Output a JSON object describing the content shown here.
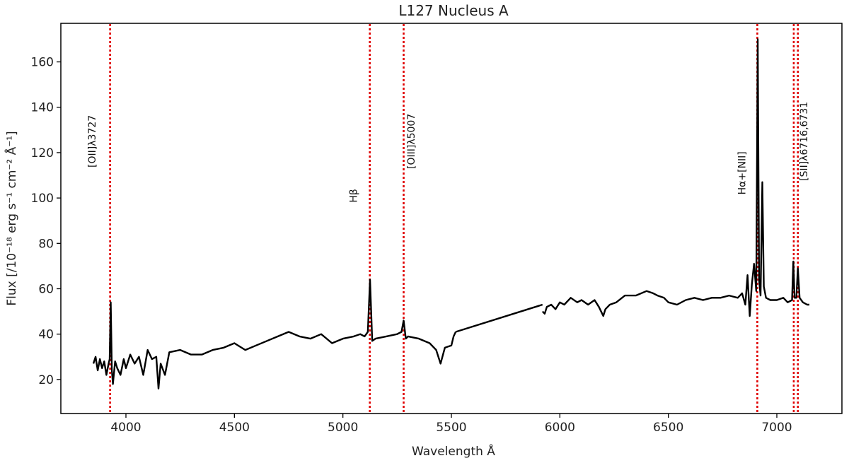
{
  "chart_data": {
    "type": "line",
    "title": "L127 Nucleus A",
    "xlabel": "Wavelength Å",
    "ylabel": "Flux  [/10⁻¹⁸ erg s⁻¹ cm⁻² Å⁻¹]",
    "xlim": [
      3700,
      7300
    ],
    "ylim": [
      5,
      177
    ],
    "x_ticks": [
      4000,
      4500,
      5000,
      5500,
      6000,
      6500,
      7000
    ],
    "y_ticks": [
      20,
      40,
      60,
      80,
      100,
      120,
      140,
      160
    ],
    "grid": false,
    "line_color": "#000000",
    "marker_color": "#e00000",
    "segments": [
      {
        "x": [
          3850,
          3860,
          3870,
          3880,
          3890,
          3900,
          3910,
          3920,
          3925,
          3930,
          3935,
          3940,
          3950,
          3960,
          3975,
          3990,
          4000,
          4020,
          4040,
          4060,
          4080,
          4100,
          4120,
          4140,
          4150,
          4160,
          4180,
          4200,
          4250,
          4300,
          4350,
          4400,
          4450,
          4500,
          4550,
          4600,
          4650,
          4700,
          4750,
          4800,
          4850,
          4900,
          4950,
          5000,
          5050,
          5080,
          5100,
          5115,
          5125,
          5135,
          5150,
          5200,
          5250,
          5270,
          5280,
          5290,
          5300,
          5350,
          5400,
          5430,
          5450,
          5470,
          5500,
          5510,
          5520
        ],
        "y": [
          27,
          30,
          24,
          29,
          25,
          28,
          22,
          27,
          29,
          54,
          24,
          18,
          28,
          25,
          22,
          29,
          25,
          31,
          27,
          30,
          22,
          33,
          29,
          30,
          16,
          27,
          22,
          32,
          33,
          31,
          31,
          33,
          34,
          36,
          33,
          35,
          37,
          39,
          41,
          39,
          38,
          40,
          36,
          38,
          39,
          40,
          39,
          41,
          64,
          37,
          38,
          39,
          40,
          41,
          46,
          38,
          39,
          38,
          36,
          33,
          27,
          34,
          35,
          39,
          41
        ]
      },
      {
        "x": [
          5520,
          5920
        ],
        "y": [
          41,
          53
        ]
      },
      {
        "x": [
          5920,
          5930,
          5940,
          5960,
          5980,
          6000,
          6020,
          6050,
          6080,
          6100,
          6130,
          6160,
          6180,
          6200,
          6210,
          6230,
          6260,
          6300,
          6350,
          6400,
          6430,
          6450,
          6480,
          6500,
          6540,
          6580,
          6620,
          6660,
          6700,
          6740,
          6780,
          6820,
          6840,
          6855,
          6865,
          6875,
          6885,
          6895,
          6905,
          6912,
          6918,
          6925,
          6933,
          6940,
          6950,
          6970,
          7000,
          7030,
          7050,
          7070,
          7076,
          7082,
          7090,
          7097,
          7105,
          7120,
          7140,
          7150
        ],
        "y": [
          50,
          49,
          52,
          53,
          51,
          54,
          53,
          56,
          54,
          55,
          53,
          55,
          52,
          48,
          51,
          53,
          54,
          57,
          57,
          59,
          58,
          57,
          56,
          54,
          53,
          55,
          56,
          55,
          56,
          56,
          57,
          56,
          58,
          53,
          66,
          48,
          62,
          71,
          59,
          170,
          64,
          57,
          107,
          61,
          56,
          55,
          55,
          56,
          54,
          55,
          72,
          56,
          56,
          69,
          56,
          54,
          53,
          53
        ]
      }
    ],
    "emission_lines": [
      {
        "label": "[OII]λ3727",
        "x": 3927,
        "label_x": 3860,
        "label_y": 125
      },
      {
        "label": "Hβ",
        "x": 5124,
        "label_x": 5065,
        "label_y": 101
      },
      {
        "label": "[OIII]λ5007",
        "x": 5280,
        "label_x": 5330,
        "label_y": 125
      },
      {
        "label": "Hα+[NII]",
        "x": 6910,
        "label_x": 6855,
        "label_y": 111
      },
      {
        "label": "[SII]λ6716,6731",
        "x": 7078,
        "x2": 7097,
        "label_x": 7140,
        "label_y": 125
      }
    ]
  }
}
